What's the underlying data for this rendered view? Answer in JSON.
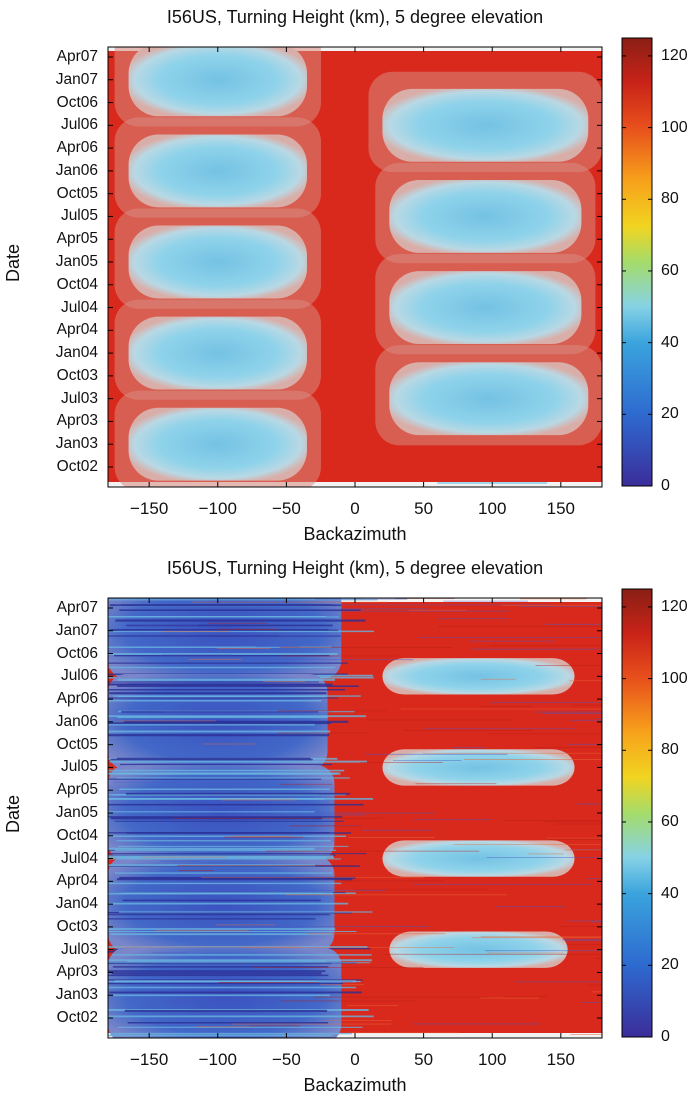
{
  "chart_data": [
    {
      "type": "heatmap",
      "title": "I56US, Turning Height (km), 5 degree elevation",
      "xlabel": "Backazimuth",
      "ylabel": "Date",
      "xlim": [
        -180,
        180
      ],
      "x_ticks": [
        "−150",
        "−100",
        "−50",
        "0",
        "50",
        "100",
        "150"
      ],
      "x_tick_values": [
        -150,
        -100,
        -50,
        0,
        50,
        100,
        150
      ],
      "y_ticks": [
        "Apr07",
        "Jan07",
        "Oct06",
        "Jul06",
        "Apr06",
        "Jan06",
        "Oct05",
        "Jul05",
        "Apr05",
        "Jan05",
        "Oct04",
        "Jul04",
        "Apr04",
        "Jan04",
        "Oct03",
        "Jul03",
        "Apr03",
        "Jan03",
        "Oct02"
      ],
      "colorbar": {
        "min": 0,
        "max": 125,
        "ticks": [
          "120",
          "100",
          "80",
          "60",
          "40",
          "20",
          "0"
        ],
        "tick_values": [
          120,
          100,
          80,
          60,
          40,
          20,
          0
        ]
      },
      "background_value": 115,
      "regions": [
        {
          "label": "winter Jan07",
          "backazimuth": [
            -165,
            -35
          ],
          "date_center": "Jan07",
          "value": 45
        },
        {
          "label": "summer Jul06",
          "backazimuth": [
            20,
            170
          ],
          "date_center": "Jul06",
          "value": 45
        },
        {
          "label": "winter Jan06",
          "backazimuth": [
            -165,
            -35
          ],
          "date_center": "Jan06",
          "value": 45
        },
        {
          "label": "summer Jul05",
          "backazimuth": [
            25,
            165
          ],
          "date_center": "Jul05",
          "value": 45
        },
        {
          "label": "winter Jan05",
          "backazimuth": [
            -165,
            -35
          ],
          "date_center": "Jan05",
          "value": 45
        },
        {
          "label": "summer Jul04",
          "backazimuth": [
            25,
            165
          ],
          "date_center": "Jul04",
          "value": 45
        },
        {
          "label": "winter Jan04",
          "backazimuth": [
            -165,
            -35
          ],
          "date_center": "Jan04",
          "value": 45
        },
        {
          "label": "summer Jul03",
          "backazimuth": [
            25,
            170
          ],
          "date_center": "Jul03",
          "value": 45
        },
        {
          "label": "winter Jan03",
          "backazimuth": [
            -165,
            -35
          ],
          "date_center": "Jan03",
          "value": 45
        }
      ]
    },
    {
      "type": "heatmap",
      "title": "I56US, Turning Height (km), 5 degree elevation",
      "xlabel": "Backazimuth",
      "ylabel": "Date",
      "xlim": [
        -180,
        180
      ],
      "x_ticks": [
        "−150",
        "−100",
        "−50",
        "0",
        "50",
        "100",
        "150"
      ],
      "x_tick_values": [
        -150,
        -100,
        -50,
        0,
        50,
        100,
        150
      ],
      "y_ticks": [
        "Apr07",
        "Jan07",
        "Oct06",
        "Jul06",
        "Apr06",
        "Jan06",
        "Oct05",
        "Jul05",
        "Apr05",
        "Jan05",
        "Oct04",
        "Jul04",
        "Apr04",
        "Jan04",
        "Oct03",
        "Jul03",
        "Apr03",
        "Jan03",
        "Oct02"
      ],
      "colorbar": {
        "min": 0,
        "max": 125,
        "ticks": [
          "120",
          "100",
          "80",
          "60",
          "40",
          "20",
          "0"
        ],
        "tick_values": [
          120,
          100,
          80,
          60,
          40,
          20,
          0
        ]
      },
      "background_value": 115,
      "regions": [
        {
          "label": "winter Jan07",
          "backazimuth": [
            -180,
            -10
          ],
          "date_center": "Jan07",
          "value": 25
        },
        {
          "label": "summer Jul06",
          "backazimuth": [
            20,
            160
          ],
          "date_center": "Jul06",
          "value": 45
        },
        {
          "label": "winter Jan06",
          "backazimuth": [
            -180,
            -20
          ],
          "date_center": "Jan06",
          "value": 25
        },
        {
          "label": "summer Jul05",
          "backazimuth": [
            20,
            160
          ],
          "date_center": "Jul05",
          "value": 45
        },
        {
          "label": "winter Jan05",
          "backazimuth": [
            -180,
            -15
          ],
          "date_center": "Jan05",
          "value": 25
        },
        {
          "label": "summer Jul04",
          "backazimuth": [
            20,
            160
          ],
          "date_center": "Jul04",
          "value": 45
        },
        {
          "label": "winter Jan04",
          "backazimuth": [
            -180,
            -15
          ],
          "date_center": "Jan04",
          "value": 25
        },
        {
          "label": "summer Jul03",
          "backazimuth": [
            25,
            155
          ],
          "date_center": "Jul03",
          "value": 45
        },
        {
          "label": "winter Jan03",
          "backazimuth": [
            -180,
            -10
          ],
          "date_center": "Jan03",
          "value": 25
        }
      ]
    }
  ],
  "colors": {
    "high": "#d9291c",
    "mid": "#f4d020",
    "low_cyan": "#7fd0e8",
    "low_blue": "#3a3fae",
    "frame": "#000000"
  }
}
